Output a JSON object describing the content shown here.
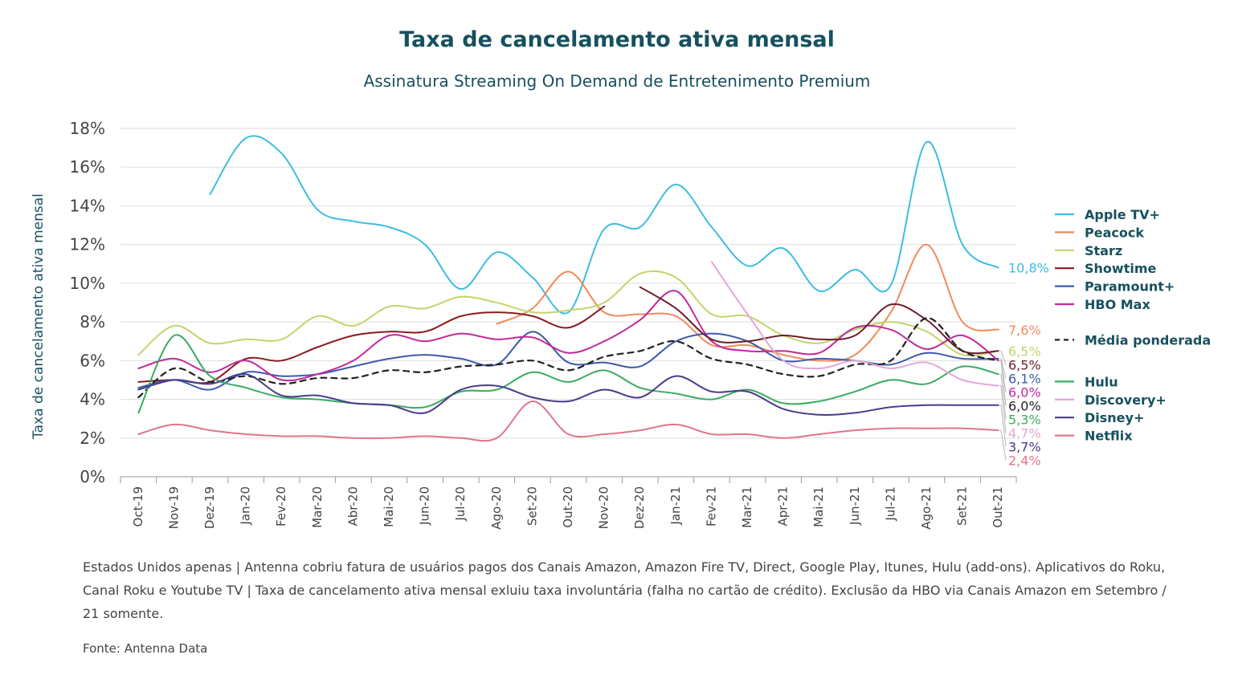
{
  "chart_data": {
    "type": "line",
    "title": "Taxa de cancelamento ativa mensal",
    "subtitle": "Assinatura Streaming On Demand de Entretenimento Premium",
    "xlabel": "",
    "ylabel": "Taxa de cancelamento ativa mensal",
    "ylim": [
      0,
      18
    ],
    "yticks": [
      "0%",
      "2%",
      "4%",
      "6%",
      "8%",
      "10%",
      "12%",
      "14%",
      "16%",
      "18%"
    ],
    "grid": "horizontal",
    "legend_position": "right",
    "categories": [
      "Oct-19",
      "Nov-19",
      "Dez-19",
      "Jan-20",
      "Fev-20",
      "Mar-20",
      "Abr-20",
      "Mai-20",
      "Jun-20",
      "Jul-20",
      "Ago-20",
      "Set-20",
      "Out-20",
      "Nov-20",
      "Dez-20",
      "Jan-21",
      "Fev-21",
      "Mar-21",
      "Apr-21",
      "Mai-21",
      "Jun-21",
      "Jul-21",
      "Ago-21",
      "Set-21",
      "Out-21"
    ],
    "series": [
      {
        "name": "Apple TV+",
        "color": "#3dbde0",
        "dash": false,
        "end_label": "10,8%",
        "values": [
          null,
          null,
          14.6,
          17.5,
          16.7,
          13.8,
          13.2,
          12.9,
          12.0,
          9.7,
          11.6,
          10.3,
          8.5,
          12.8,
          12.9,
          15.1,
          12.9,
          10.9,
          11.8,
          9.6,
          10.7,
          9.9,
          17.3,
          12.0,
          10.8
        ]
      },
      {
        "name": "Peacock",
        "color": "#f08a5a",
        "dash": false,
        "end_label": "7,6%",
        "values": [
          null,
          null,
          null,
          null,
          null,
          null,
          null,
          null,
          null,
          null,
          7.9,
          8.7,
          10.6,
          8.5,
          8.4,
          8.3,
          6.8,
          6.8,
          6.3,
          6.0,
          6.3,
          8.5,
          12.0,
          8.0,
          7.6
        ]
      },
      {
        "name": "Starz",
        "color": "#c4d46a",
        "dash": false,
        "end_label": "6,5%",
        "values": [
          6.3,
          7.8,
          6.9,
          7.1,
          7.1,
          8.3,
          7.8,
          8.8,
          8.7,
          9.3,
          9.0,
          8.5,
          8.6,
          9.0,
          10.5,
          10.3,
          8.4,
          8.3,
          7.3,
          6.9,
          7.6,
          8.0,
          7.5,
          6.3,
          6.5
        ]
      },
      {
        "name": "Showtime",
        "color": "#8b1a1a",
        "dash": false,
        "end_label": "",
        "values": [
          4.9,
          5.0,
          4.9,
          6.1,
          6.0,
          6.7,
          7.3,
          7.5,
          7.5,
          8.3,
          8.5,
          8.3,
          7.7,
          8.8,
          null,
          null,
          null,
          null,
          null,
          null,
          null,
          null,
          null,
          null,
          null
        ]
      },
      {
        "name": "Paramount+",
        "color": "#3b5ba8",
        "dash": false,
        "end_label": "6,1%",
        "values": [
          4.6,
          5.0,
          4.5,
          5.4,
          5.2,
          5.3,
          5.7,
          6.1,
          6.3,
          6.1,
          5.8,
          7.5,
          5.9,
          5.9,
          5.7,
          7.0,
          7.4,
          7.0,
          6.0,
          6.1,
          6.0,
          5.8,
          6.4,
          6.1,
          6.1
        ]
      },
      {
        "name": "HBO Max",
        "color": "#c0299e",
        "dash": false,
        "end_label": "6,0%",
        "values": [
          5.6,
          6.1,
          5.4,
          6.0,
          5.0,
          5.3,
          6.0,
          7.3,
          7.0,
          7.4,
          7.1,
          7.2,
          6.4,
          7.0,
          8.1,
          9.6,
          7.0,
          6.5,
          6.5,
          6.4,
          7.7,
          7.6,
          6.6,
          7.3,
          6.0
        ]
      },
      {
        "name": "",
        "color": "#6b1f2e",
        "dash": false,
        "end_label": "6,5%",
        "values": [
          null,
          null,
          null,
          null,
          null,
          null,
          null,
          null,
          null,
          null,
          null,
          null,
          null,
          null,
          9.8,
          8.7,
          7.1,
          7.0,
          7.3,
          7.1,
          7.3,
          8.9,
          8.1,
          6.5,
          6.5
        ]
      },
      {
        "name": "Média ponderada",
        "color": "#222222",
        "dash": true,
        "end_label": "6,0%",
        "values": [
          4.1,
          5.6,
          4.9,
          5.2,
          4.8,
          5.1,
          5.1,
          5.5,
          5.4,
          5.7,
          5.8,
          6.0,
          5.5,
          6.2,
          6.5,
          7.0,
          6.1,
          5.8,
          5.3,
          5.2,
          5.8,
          6.0,
          8.2,
          6.5,
          6.0
        ]
      },
      {
        "name": "Hulu",
        "color": "#3aab63",
        "dash": false,
        "end_label": "5,3%",
        "values": [
          3.3,
          7.3,
          5.2,
          4.6,
          4.1,
          4.0,
          3.8,
          3.7,
          3.6,
          4.4,
          4.5,
          5.4,
          4.9,
          5.5,
          4.6,
          4.3,
          4.0,
          4.5,
          3.8,
          3.9,
          4.4,
          5.0,
          4.8,
          5.7,
          5.3
        ]
      },
      {
        "name": "Discovery+",
        "color": "#e4a6d8",
        "dash": false,
        "end_label": "4,7%",
        "values": [
          null,
          null,
          null,
          null,
          null,
          null,
          null,
          null,
          null,
          null,
          null,
          null,
          null,
          null,
          null,
          null,
          11.1,
          8.4,
          6.0,
          5.6,
          6.0,
          5.6,
          5.9,
          5.0,
          4.7
        ]
      },
      {
        "name": "Disney+",
        "color": "#4b3a8c",
        "dash": false,
        "end_label": "3,7%",
        "values": [
          4.5,
          5.0,
          4.8,
          5.3,
          4.2,
          4.2,
          3.8,
          3.7,
          3.3,
          4.5,
          4.7,
          4.1,
          3.9,
          4.5,
          4.1,
          5.2,
          4.4,
          4.4,
          3.5,
          3.2,
          3.3,
          3.6,
          3.7,
          3.7,
          3.7
        ]
      },
      {
        "name": "Netflix",
        "color": "#e0758c",
        "dash": false,
        "end_label": "2,4%",
        "values": [
          2.2,
          2.7,
          2.4,
          2.2,
          2.1,
          2.1,
          2.0,
          2.0,
          2.1,
          2.0,
          2.0,
          3.9,
          2.2,
          2.2,
          2.4,
          2.7,
          2.2,
          2.2,
          2.0,
          2.2,
          2.4,
          2.5,
          2.5,
          2.5,
          2.4
        ]
      }
    ],
    "legend": [
      {
        "name": "Apple TV+",
        "color": "#3dbde0",
        "dash": false
      },
      {
        "name": "Peacock",
        "color": "#f08a5a",
        "dash": false
      },
      {
        "name": "Starz",
        "color": "#c4d46a",
        "dash": false
      },
      {
        "name": "Showtime",
        "color": "#8b1a1a",
        "dash": false
      },
      {
        "name": "Paramount+",
        "color": "#3b5ba8",
        "dash": false
      },
      {
        "name": "HBO Max",
        "color": "#c0299e",
        "dash": false
      },
      {
        "name": "Média ponderada",
        "color": "#222222",
        "dash": true
      },
      {
        "name": "Hulu",
        "color": "#3aab63",
        "dash": false
      },
      {
        "name": "Discovery+",
        "color": "#e4a6d8",
        "dash": false
      },
      {
        "name": "Disney+",
        "color": "#4b3a8c",
        "dash": false
      },
      {
        "name": "Netflix",
        "color": "#e0758c",
        "dash": false
      }
    ]
  },
  "footnote": "Estados Unidos apenas | Antenna cobriu fatura de usuários pagos dos Canais Amazon, Amazon Fire TV, Direct, Google Play, Itunes, Hulu (add-ons). Aplicativos do Roku, Canal Roku e Youtube TV | Taxa de cancelamento ativa mensal exluiu taxa involuntária (falha no cartão de crédito). Exclusão da HBO via Canais Amazon em Setembro / 21 somente.",
  "source": "Fonte: Antenna Data"
}
